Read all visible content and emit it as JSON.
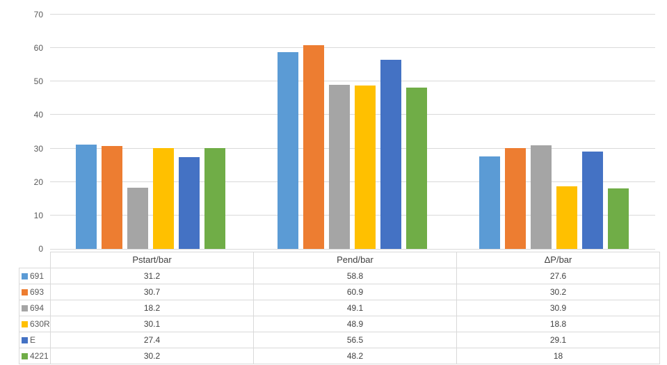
{
  "chart_data": {
    "type": "bar",
    "title": "",
    "xlabel": "",
    "ylabel": "",
    "categories": [
      "Pstart/bar",
      "Pend/bar",
      "ΔP/bar"
    ],
    "series": [
      {
        "name": "691",
        "color": "#5B9BD5",
        "values": [
          31.2,
          58.8,
          27.6
        ]
      },
      {
        "name": "693",
        "color": "#ED7D31",
        "values": [
          30.7,
          60.9,
          30.2
        ]
      },
      {
        "name": "694",
        "color": "#A5A5A5",
        "values": [
          18.2,
          49.1,
          30.9
        ]
      },
      {
        "name": "630R",
        "color": "#FFC000",
        "values": [
          30.1,
          48.9,
          18.8
        ]
      },
      {
        "name": "E",
        "color": "#4472C4",
        "values": [
          27.4,
          56.5,
          29.1
        ]
      },
      {
        "name": "4221",
        "color": "#70AD47",
        "values": [
          30.2,
          48.2,
          18
        ]
      }
    ],
    "ylim": [
      0,
      70
    ],
    "yticks": [
      0,
      10,
      20,
      30,
      40,
      50,
      60,
      70
    ],
    "grid": true,
    "gridline_color": "#D9D9D9",
    "axis_label_color": "#595959",
    "table_text_color": "#404040",
    "table_border_color": "#D9D9D9",
    "legend_position": "data-table-left",
    "data_table_corner_label": ""
  }
}
